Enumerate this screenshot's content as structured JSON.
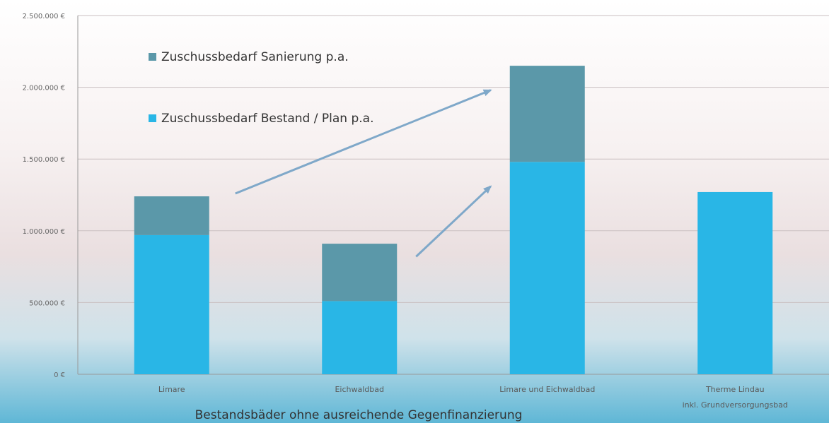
{
  "chart_data": {
    "type": "bar",
    "stacked": true,
    "categories": [
      "Limare",
      "Eichwaldbad",
      "Limare und Eichwaldbad",
      "Therme Lindau inkl. Grundversorgungsbad"
    ],
    "series": [
      {
        "name": "Zuschussbedarf Bestand / Plan p.a.",
        "values": [
          970000,
          510000,
          1480000,
          1270000
        ],
        "color": "#29b6e6"
      },
      {
        "name": "Zuschussbedarf Sanierung p.a.",
        "values": [
          270000,
          400000,
          670000,
          0
        ],
        "color": "#5b98a9"
      }
    ],
    "xlabel": "Bestandsbäder ohne ausreichende Gegenfinanzierung",
    "ylabel": "",
    "ylim": [
      0,
      2500000
    ],
    "yticks": [
      0,
      500000,
      1000000,
      1500000,
      2000000,
      2500000
    ],
    "ytick_labels": [
      "0 €",
      "500.000 €",
      "1.000.000 €",
      "1.500.000 €",
      "2.000.000 €",
      "2.500.000 €"
    ],
    "grid": true,
    "legend_position": "top-left",
    "legend_order": [
      "Zuschussbedarf Sanierung p.a.",
      "Zuschussbedarf Bestand / Plan p.a."
    ],
    "annotations": [
      {
        "type": "arrow",
        "from": "Limare",
        "to": "Limare und Eichwaldbad"
      },
      {
        "type": "arrow",
        "from": "Eichwaldbad",
        "to": "Limare und Eichwaldbad"
      }
    ],
    "arrow_color": "#7fa8c9"
  }
}
